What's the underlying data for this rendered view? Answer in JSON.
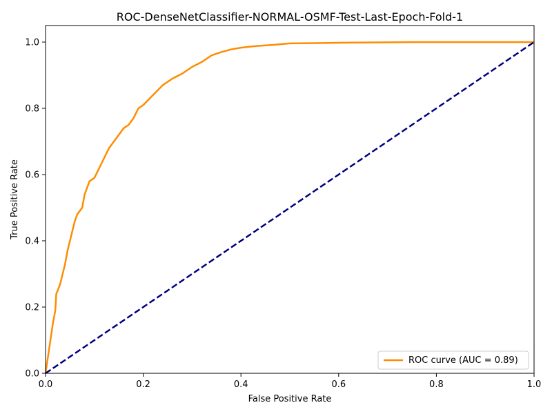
{
  "chart_data": {
    "type": "line",
    "title": "ROC-DenseNetClassifier-NORMAL-OSMF-Test-Last-Epoch-Fold-1",
    "xlabel": "False Positive Rate",
    "ylabel": "True Positive Rate",
    "xlim": [
      0.0,
      1.0
    ],
    "ylim": [
      0.0,
      1.05
    ],
    "xticks": [
      "0.0",
      "0.2",
      "0.4",
      "0.6",
      "0.8",
      "1.0"
    ],
    "yticks": [
      "0.0",
      "0.2",
      "0.4",
      "0.6",
      "0.8",
      "1.0"
    ],
    "grid": false,
    "legend_position": "lower-right",
    "series": [
      {
        "name": "ROC curve (AUC = 0.89)",
        "color": "#ff8c00",
        "style": "solid",
        "x": [
          0.0,
          0.005,
          0.01,
          0.015,
          0.02,
          0.022,
          0.025,
          0.03,
          0.035,
          0.04,
          0.045,
          0.05,
          0.055,
          0.06,
          0.065,
          0.07,
          0.075,
          0.08,
          0.085,
          0.09,
          0.1,
          0.11,
          0.12,
          0.13,
          0.14,
          0.15,
          0.16,
          0.17,
          0.18,
          0.19,
          0.2,
          0.22,
          0.24,
          0.26,
          0.28,
          0.3,
          0.32,
          0.34,
          0.36,
          0.38,
          0.4,
          0.43,
          0.46,
          0.5,
          0.55,
          0.6,
          0.67,
          0.75,
          0.85,
          1.0
        ],
        "y": [
          0.0,
          0.05,
          0.1,
          0.15,
          0.19,
          0.24,
          0.25,
          0.27,
          0.3,
          0.33,
          0.37,
          0.4,
          0.43,
          0.46,
          0.48,
          0.49,
          0.5,
          0.54,
          0.56,
          0.58,
          0.59,
          0.62,
          0.65,
          0.68,
          0.7,
          0.72,
          0.74,
          0.75,
          0.77,
          0.8,
          0.81,
          0.84,
          0.87,
          0.89,
          0.905,
          0.925,
          0.94,
          0.96,
          0.97,
          0.978,
          0.983,
          0.988,
          0.991,
          0.996,
          0.997,
          0.998,
          0.999,
          1.0,
          1.0,
          1.0
        ]
      },
      {
        "name": "",
        "color": "#000080",
        "style": "dashed",
        "x": [
          0.0,
          1.0
        ],
        "y": [
          0.0,
          1.0
        ]
      }
    ]
  }
}
